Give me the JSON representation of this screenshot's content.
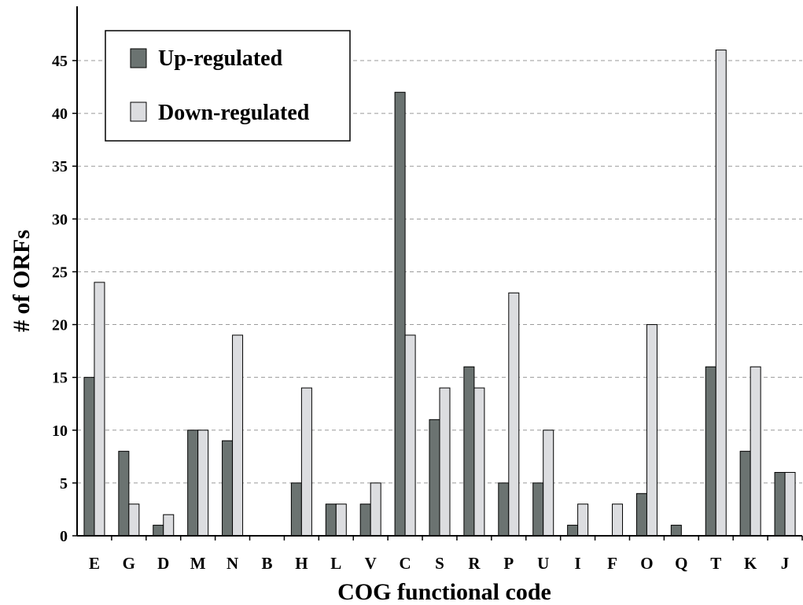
{
  "chart_data": {
    "type": "bar",
    "xlabel": "COG functional code",
    "ylabel": "# of ORFs",
    "categories": [
      "E",
      "G",
      "D",
      "M",
      "N",
      "B",
      "H",
      "L",
      "V",
      "C",
      "S",
      "R",
      "P",
      "U",
      "I",
      "F",
      "O",
      "Q",
      "T",
      "K",
      "J"
    ],
    "series": [
      {
        "name": "Up-regulated",
        "color": "#6b7371",
        "values": [
          15,
          8,
          1,
          10,
          9,
          0,
          5,
          3,
          3,
          42,
          11,
          16,
          5,
          5,
          1,
          0,
          4,
          1,
          16,
          8,
          6
        ]
      },
      {
        "name": "Down-regulated",
        "color": "#dcdde0",
        "values": [
          24,
          3,
          2,
          10,
          19,
          0,
          14,
          3,
          5,
          19,
          14,
          14,
          23,
          10,
          3,
          3,
          20,
          0,
          46,
          16,
          6
        ]
      }
    ],
    "ylim": [
      0,
      49
    ],
    "yticks": [
      0,
      5,
      10,
      15,
      20,
      25,
      30,
      35,
      40,
      45
    ],
    "grid": true,
    "legend_position": "top-left"
  }
}
